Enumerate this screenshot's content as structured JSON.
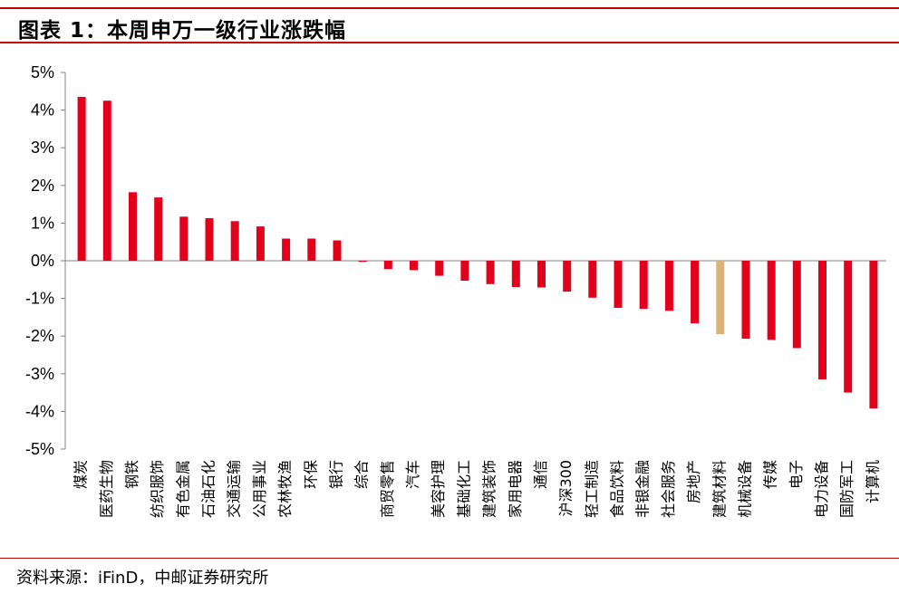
{
  "title": "图表 1：本周申万一级行业涨跌幅",
  "source": "资料来源：iFinD，中邮证券研究所",
  "colors": {
    "bar": "#e3001b",
    "highlight": "#d9b27a",
    "rule": "#c00000"
  },
  "chart_data": {
    "type": "bar",
    "title": "",
    "xlabel": "",
    "ylabel": "",
    "ylim": [
      -5,
      5
    ],
    "yticks": [
      "5%",
      "4%",
      "3%",
      "2%",
      "1%",
      "0%",
      "-1%",
      "-2%",
      "-3%",
      "-4%",
      "-5%"
    ],
    "y_unit": "%",
    "grid": false,
    "legend": "none",
    "highlight_category": "建筑材料",
    "categories": [
      "煤炭",
      "医药生物",
      "钢铁",
      "纺织服饰",
      "有色金属",
      "石油石化",
      "交通运输",
      "公用事业",
      "农林牧渔",
      "环保",
      "银行",
      "综合",
      "商贸零售",
      "汽车",
      "美容护理",
      "基础化工",
      "建筑装饰",
      "家用电器",
      "通信",
      "沪深300",
      "轻工制造",
      "食品饮料",
      "非银金融",
      "社会服务",
      "房地产",
      "建筑材料",
      "机械设备",
      "传媒",
      "电子",
      "电力设备",
      "国防军工",
      "计算机"
    ],
    "values": [
      4.35,
      4.25,
      1.82,
      1.68,
      1.17,
      1.13,
      1.05,
      0.91,
      0.59,
      0.59,
      0.54,
      -0.03,
      -0.22,
      -0.25,
      -0.4,
      -0.53,
      -0.62,
      -0.7,
      -0.71,
      -0.82,
      -0.98,
      -1.25,
      -1.28,
      -1.33,
      -1.66,
      -1.95,
      -2.07,
      -2.1,
      -2.32,
      -3.15,
      -3.5,
      -3.92
    ]
  }
}
